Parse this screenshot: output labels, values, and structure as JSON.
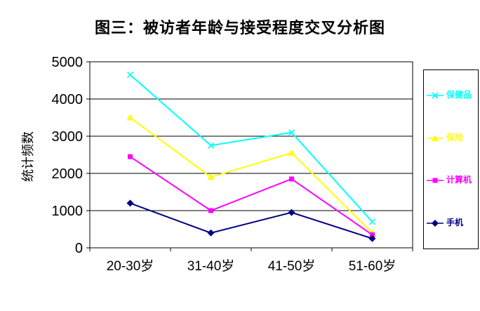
{
  "title": "图三：被访者年龄与接受程度交叉分析图",
  "y_axis_label": "统计频数",
  "chart_data": {
    "type": "line",
    "categories": [
      "20-30岁",
      "31-40岁",
      "41-50岁",
      "51-60岁"
    ],
    "series": [
      {
        "name": "保健品",
        "color": "#00FFFF",
        "marker": "x",
        "values": [
          4650,
          2750,
          3100,
          700
        ]
      },
      {
        "name": "保险",
        "color": "#FFFF00",
        "marker": "triangle",
        "values": [
          3500,
          1900,
          2550,
          400
        ]
      },
      {
        "name": "计算机",
        "color": "#FF00FF",
        "marker": "square",
        "values": [
          2450,
          1000,
          1850,
          350
        ]
      },
      {
        "name": "手机",
        "color": "#000080",
        "marker": "diamond",
        "values": [
          1200,
          400,
          950,
          250
        ]
      }
    ],
    "ylim": [
      0,
      5000
    ],
    "ytick_step": 1000,
    "ytick_labels": [
      "0",
      "1000",
      "2000",
      "3000",
      "4000",
      "5000"
    ],
    "grid": "horizontal",
    "legend_position": "right"
  }
}
